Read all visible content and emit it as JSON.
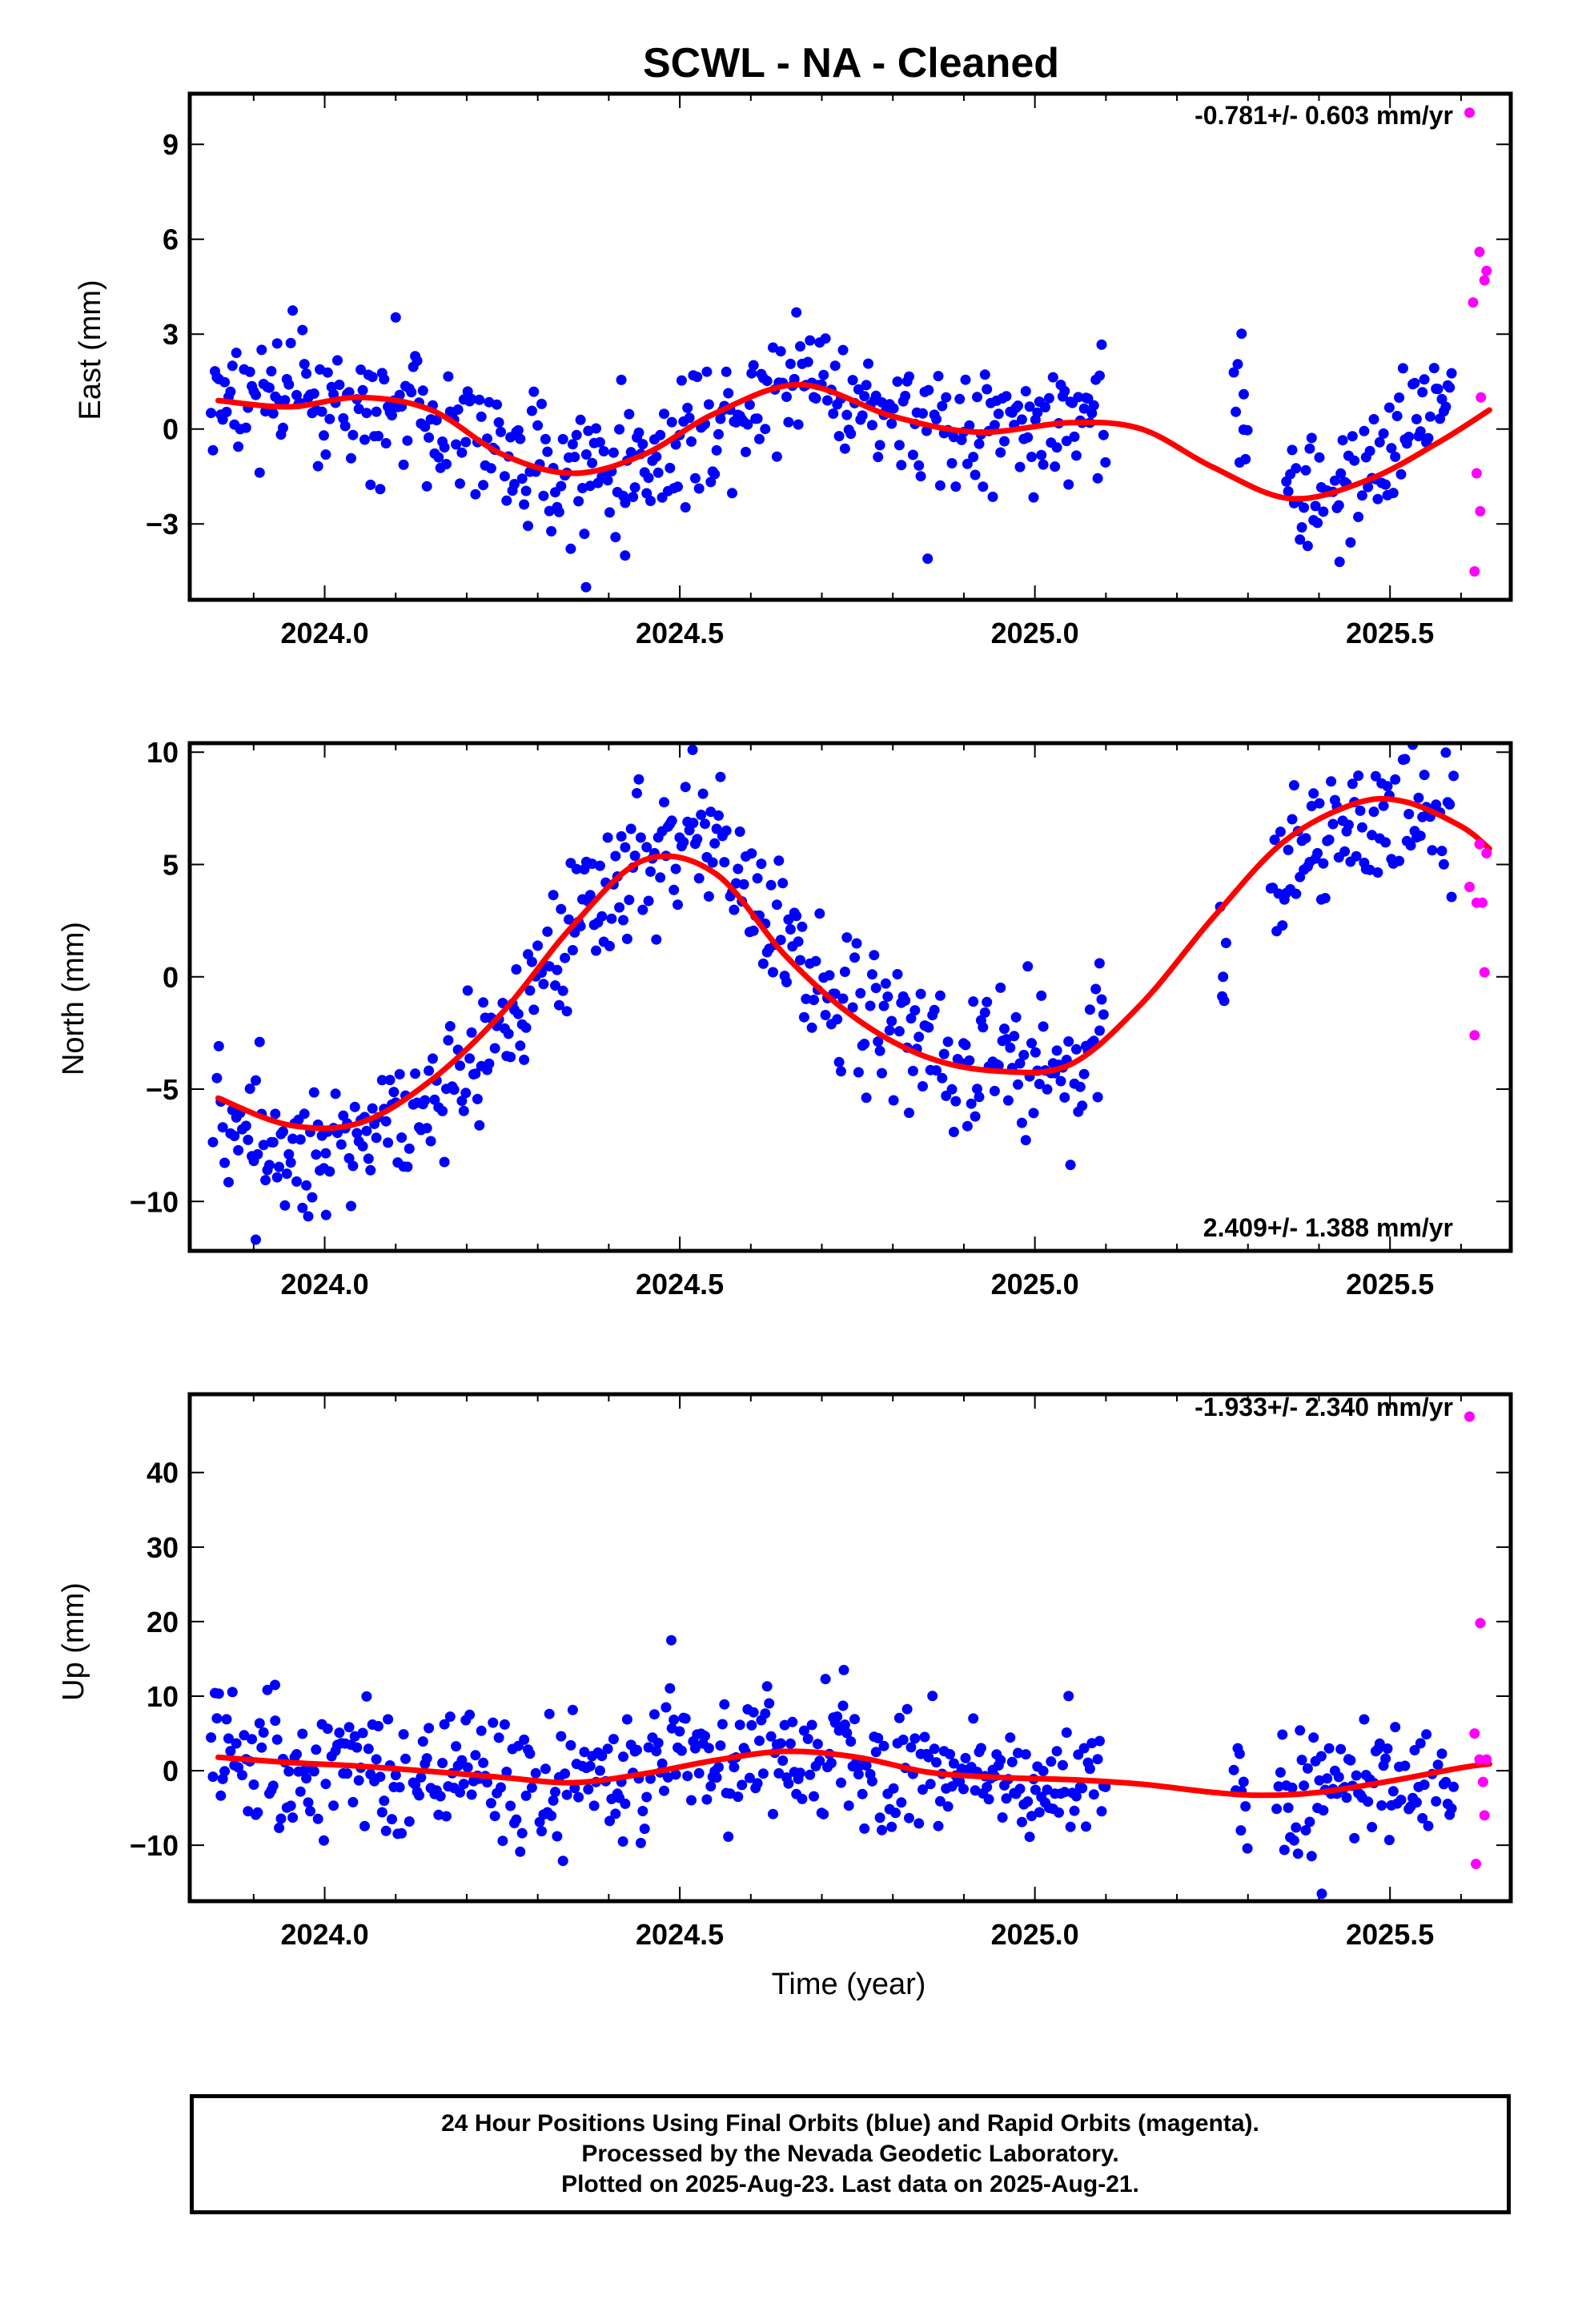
{
  "title": "SCWL  - NA - Cleaned",
  "footer": {
    "line1": "24 Hour Positions Using Final Orbits (blue) and Rapid Orbits (magenta).",
    "line2": "Processed by the Nevada Geodetic Laboratory.",
    "line3": "Plotted on 2025-Aug-23. Last data on 2025-Aug-21."
  },
  "colors": {
    "final": "#0000ff",
    "rapid": "#ff00ff",
    "model": "#ff0000"
  },
  "chart_data": [
    {
      "type": "scatter",
      "component": "east",
      "ylabel": "East (mm)",
      "xlabel": "",
      "xlim": [
        2023.81,
        2025.67
      ],
      "ylim": [
        -5.4,
        10.6
      ],
      "xticks": [
        2024.0,
        2024.5,
        2025.0,
        2025.5
      ],
      "xtick_labels": [
        "2024.0",
        "2024.5",
        "2025.0",
        "2025.5"
      ],
      "yticks": [
        -3,
        0,
        3,
        6,
        9
      ],
      "ytick_labels": [
        "−3",
        "0",
        "3",
        "6",
        "9"
      ],
      "rate": "-0.781+/- 0.603 mm/yr",
      "rate_position": "top-right",
      "model": {
        "x": [
          2023.85,
          2023.95,
          2024.05,
          2024.15,
          2024.25,
          2024.35,
          2024.45,
          2024.55,
          2024.67,
          2024.8,
          2024.92,
          2025.05,
          2025.15,
          2025.25,
          2025.36,
          2025.47,
          2025.57,
          2025.64
        ],
        "y": [
          0.9,
          0.7,
          1.0,
          0.6,
          -0.8,
          -1.4,
          -0.8,
          0.5,
          1.4,
          0.4,
          -0.1,
          0.2,
          0.0,
          -1.2,
          -2.2,
          -1.6,
          -0.4,
          0.6
        ]
      },
      "anchors": {
        "x": [
          2023.85,
          2023.95,
          2024.05,
          2024.15,
          2024.25,
          2024.35,
          2024.45,
          2024.55,
          2024.67,
          2024.8,
          2024.92,
          2025.05,
          2025.1,
          2025.29,
          2025.35,
          2025.42,
          2025.5,
          2025.58
        ],
        "y": [
          0.9,
          1.0,
          1.0,
          0.6,
          -0.8,
          -1.4,
          -1.0,
          0.3,
          2.0,
          0.3,
          0.0,
          0.5,
          0.3,
          1.1,
          -1.7,
          -2.3,
          -0.4,
          1.5
        ]
      },
      "spread": 1.0,
      "final_end": 2025.59,
      "gaps": [
        [
          2025.1,
          2025.28
        ],
        [
          2025.3,
          2025.35
        ]
      ],
      "extra_points": {
        "x": [
          2025.294,
          2024.368,
          2024.423,
          2024.849,
          2025.429
        ],
        "y": [
          1.1,
          -5.0,
          -4.0,
          -4.1,
          -4.2
        ]
      },
      "rapid": {
        "x": [
          2025.612,
          2025.617,
          2025.619,
          2025.622,
          2025.626,
          2025.627,
          2025.628,
          2025.633,
          2025.636
        ],
        "y": [
          10.0,
          4.0,
          -4.5,
          -1.4,
          5.6,
          -2.6,
          1.0,
          4.7,
          5.0
        ]
      }
    },
    {
      "type": "scatter",
      "component": "north",
      "ylabel": "North (mm)",
      "xlabel": "",
      "xlim": [
        2023.81,
        2025.67
      ],
      "ylim": [
        -12.2,
        10.4
      ],
      "xticks": [
        2024.0,
        2024.5,
        2025.0,
        2025.5
      ],
      "xtick_labels": [
        "2024.0",
        "2024.5",
        "2025.0",
        "2025.5"
      ],
      "yticks": [
        -10,
        -5,
        0,
        5,
        10
      ],
      "ytick_labels": [
        "−10",
        "−5",
        "0",
        "5",
        "10"
      ],
      "rate": "2.409+/- 1.388 mm/yr",
      "rate_position": "bottom-right",
      "model": {
        "x": [
          2023.85,
          2023.95,
          2024.05,
          2024.15,
          2024.25,
          2024.35,
          2024.45,
          2024.55,
          2024.65,
          2024.75,
          2024.85,
          2024.95,
          2025.05,
          2025.15,
          2025.25,
          2025.35,
          2025.45,
          2025.52,
          2025.6,
          2025.64
        ],
        "y": [
          -5.4,
          -6.6,
          -6.5,
          -4.6,
          -1.6,
          2.3,
          5.2,
          4.6,
          0.9,
          -1.9,
          -3.6,
          -4.2,
          -3.9,
          -1.2,
          2.6,
          6.0,
          7.7,
          7.8,
          6.7,
          5.7
        ]
      },
      "anchors": {
        "x": [
          2023.85,
          2023.95,
          2024.05,
          2024.15,
          2024.25,
          2024.35,
          2024.45,
          2024.55,
          2024.65,
          2024.75,
          2024.85,
          2024.95,
          2025.05,
          2025.1,
          2025.26,
          2025.33,
          2025.4,
          2025.5,
          2025.58
        ],
        "y": [
          -6.0,
          -7.0,
          -7.0,
          -5.0,
          -2.5,
          1.5,
          5.5,
          6.0,
          1.5,
          -1.5,
          -3.5,
          -3.0,
          -4.5,
          -3.0,
          0.0,
          5.0,
          6.0,
          7.5,
          6.5
        ]
      },
      "spread": 1.6,
      "final_end": 2025.59,
      "gaps": [
        [
          2025.1,
          2025.26
        ],
        [
          2025.27,
          2025.33
        ]
      ],
      "extra_points": {
        "x": [
          2025.265,
          2023.903,
          2024.002,
          2024.518,
          2025.091
        ],
        "y": [
          0.0,
          -11.7,
          -10.6,
          10.1,
          0.6
        ]
      },
      "rapid": {
        "x": [
          2025.612,
          2025.619,
          2025.622,
          2025.626,
          2025.63,
          2025.633,
          2025.636
        ],
        "y": [
          4.0,
          -2.6,
          3.3,
          5.9,
          3.3,
          0.2,
          5.5
        ]
      }
    },
    {
      "type": "scatter",
      "component": "up",
      "ylabel": "Up (mm)",
      "xlabel": "Time (year)",
      "xlim": [
        2023.81,
        2025.67
      ],
      "ylim": [
        -17.5,
        50.5
      ],
      "xticks": [
        2024.0,
        2024.5,
        2025.0,
        2025.5
      ],
      "xtick_labels": [
        "2024.0",
        "2024.5",
        "2025.0",
        "2025.5"
      ],
      "yticks": [
        -10,
        0,
        10,
        20,
        30,
        40
      ],
      "ytick_labels": [
        "−10",
        "0",
        "10",
        "20",
        "30",
        "40"
      ],
      "rate": "-1.933+/- 2.340 mm/yr",
      "rate_position": "top-right",
      "model": {
        "x": [
          2023.85,
          2023.95,
          2024.05,
          2024.15,
          2024.25,
          2024.35,
          2024.45,
          2024.55,
          2024.65,
          2024.75,
          2024.85,
          2024.95,
          2025.05,
          2025.15,
          2025.25,
          2025.32,
          2025.4,
          2025.5,
          2025.6,
          2025.64
        ],
        "y": [
          1.8,
          1.1,
          0.6,
          -0.1,
          -0.9,
          -1.6,
          -0.4,
          1.4,
          2.6,
          1.8,
          -0.2,
          -0.9,
          -1.2,
          -1.8,
          -2.9,
          -3.3,
          -2.9,
          -1.4,
          0.4,
          0.9
        ]
      },
      "anchors": {
        "x": [
          2023.85,
          2024.0,
          2024.2,
          2024.35,
          2024.5,
          2024.65,
          2024.85,
          2025.05,
          2025.1,
          2025.35,
          2025.45,
          2025.58
        ],
        "y": [
          1.8,
          0.6,
          -0.5,
          -1.6,
          0.8,
          2.6,
          -0.2,
          -1.2,
          -1.5,
          -3.3,
          -2.5,
          0.0
        ]
      },
      "spread": 4.2,
      "final_end": 2025.59,
      "gaps": [
        [
          2025.1,
          2025.28
        ],
        [
          2025.3,
          2025.34
        ]
      ],
      "extra_points": {
        "x": [
          2025.29,
          2024.488,
          2024.731,
          2025.404,
          2023.93,
          2024.42
        ],
        "y": [
          -8.0,
          17.5,
          13.5,
          -16.5,
          11.5,
          -9.5
        ]
      },
      "rapid": {
        "x": [
          2025.612,
          2025.619,
          2025.621,
          2025.626,
          2025.627,
          2025.631,
          2025.633,
          2025.636
        ],
        "y": [
          47.5,
          5.0,
          -12.5,
          1.5,
          19.8,
          -1.5,
          -6.0,
          1.5
        ]
      }
    }
  ]
}
